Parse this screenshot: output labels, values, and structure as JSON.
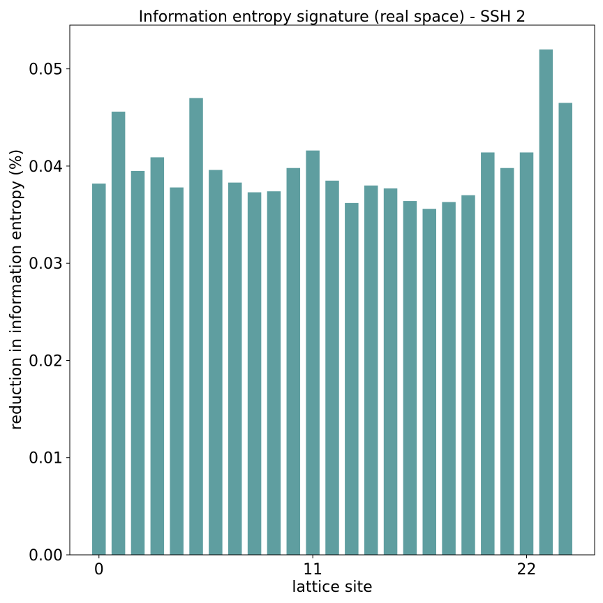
{
  "chart_data": {
    "type": "bar",
    "title": "Information entropy signature (real space) - SSH 2",
    "xlabel": "lattice site",
    "ylabel": "reduction in information entropy (%)",
    "x": [
      0,
      1,
      2,
      3,
      4,
      5,
      6,
      7,
      8,
      9,
      10,
      11,
      12,
      13,
      14,
      15,
      16,
      17,
      18,
      19,
      20,
      21,
      22,
      23,
      24
    ],
    "values": [
      0.0382,
      0.0456,
      0.0395,
      0.0409,
      0.0378,
      0.047,
      0.0396,
      0.0383,
      0.0373,
      0.0374,
      0.0398,
      0.0416,
      0.0385,
      0.0362,
      0.038,
      0.0377,
      0.0364,
      0.0356,
      0.0363,
      0.037,
      0.0414,
      0.0398,
      0.0414,
      0.052,
      0.0465
    ],
    "x_ticks": [
      "0",
      "11",
      "22"
    ],
    "y_ticks": [
      "0.00",
      "0.01",
      "0.02",
      "0.03",
      "0.04",
      "0.05"
    ],
    "ylim": [
      0,
      0.0545
    ],
    "xlim": [
      -1.5,
      25.5
    ],
    "bar_color": "#5f9ea0",
    "grid": false
  }
}
